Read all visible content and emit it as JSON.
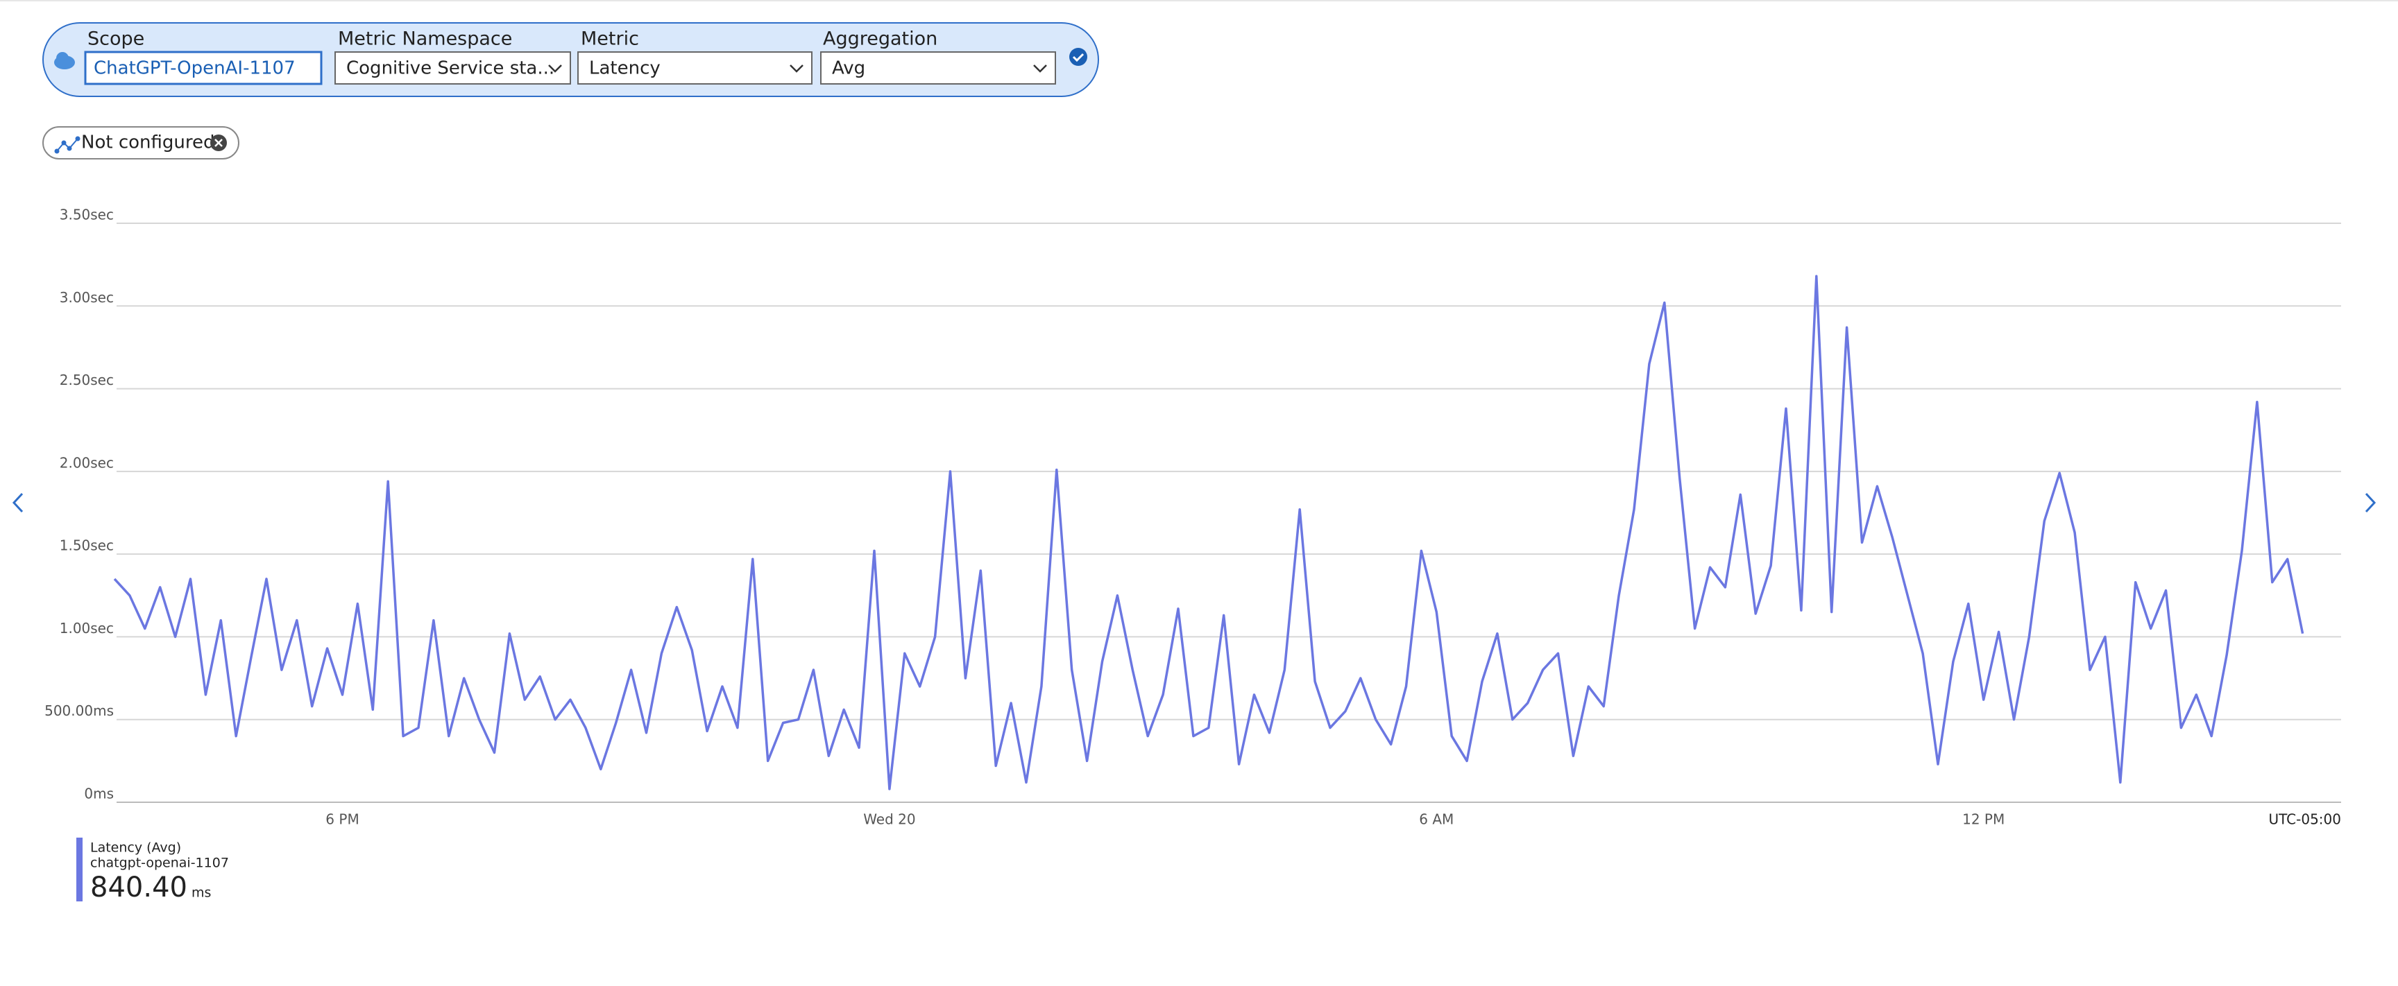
{
  "toolbar": {
    "scope_label": "Scope",
    "scope_value": "ChatGPT-OpenAI-1107",
    "namespace_label": "Metric Namespace",
    "namespace_value": "Cognitive Service sta...",
    "metric_label": "Metric",
    "metric_value": "Latency",
    "aggregation_label": "Aggregation",
    "aggregation_value": "Avg"
  },
  "filter": {
    "label": "Not configured"
  },
  "legend": {
    "name": "Latency (Avg)",
    "resource": "chatgpt-openai-1107",
    "value": "840.40",
    "unit": "ms"
  },
  "chart_data": {
    "type": "line",
    "timezone": "UTC-05:00",
    "categories": [
      null,
      null,
      null,
      null,
      null,
      null,
      null,
      null,
      null,
      null,
      null,
      null,
      null,
      null,
      null,
      "6 PM",
      null,
      null,
      null,
      null,
      null,
      null,
      null,
      null,
      null,
      null,
      null,
      null,
      null,
      null,
      null,
      null,
      null,
      null,
      null,
      null,
      null,
      null,
      null,
      null,
      null,
      null,
      null,
      null,
      null,
      null,
      null,
      null,
      null,
      null,
      null,
      "Wed 20",
      null,
      null,
      null,
      null,
      null,
      null,
      null,
      null,
      null,
      null,
      null,
      null,
      null,
      null,
      null,
      null,
      null,
      null,
      null,
      null,
      null,
      null,
      null,
      null,
      null,
      null,
      null,
      null,
      null,
      null,
      null,
      null,
      null,
      null,
      null,
      "6 AM",
      null,
      null,
      null,
      null,
      null,
      null,
      null,
      null,
      null,
      null,
      null,
      null,
      null,
      null,
      null,
      null,
      null,
      null,
      null,
      null,
      null,
      null,
      null,
      null,
      null,
      null,
      null,
      null,
      null,
      null,
      null,
      null,
      null,
      null,
      null,
      "12 PM",
      null,
      null,
      null,
      null,
      null,
      null,
      null,
      null,
      null,
      null,
      null,
      null,
      null,
      null,
      null,
      null,
      null,
      null,
      null,
      null,
      null
    ],
    "series": [
      {
        "name": "Latency (Avg)",
        "color": "#6b77e1",
        "values": [
          1350,
          1250,
          1050,
          1300,
          1000,
          1350,
          650,
          1100,
          400,
          880,
          1350,
          800,
          1100,
          580,
          930,
          650,
          1200,
          560,
          1940,
          400,
          450,
          1100,
          400,
          750,
          500,
          300,
          1020,
          620,
          760,
          500,
          620,
          450,
          200,
          480,
          800,
          420,
          900,
          1180,
          920,
          430,
          700,
          450,
          1470,
          250,
          480,
          500,
          800,
          280,
          560,
          330,
          1520,
          80,
          900,
          700,
          1000,
          2000,
          750,
          1400,
          220,
          600,
          120,
          700,
          2010,
          800,
          250,
          850,
          1250,
          800,
          400,
          650,
          1170,
          400,
          450,
          1130,
          230,
          650,
          420,
          800,
          1770,
          730,
          450,
          550,
          750,
          500,
          350,
          700,
          1520,
          1150,
          400,
          250,
          730,
          1020,
          500,
          600,
          800,
          900,
          280,
          700,
          580,
          1250,
          1770,
          2650,
          3020,
          1960,
          1050,
          1420,
          1300,
          1860,
          1140,
          1430,
          2380,
          1160,
          3180,
          1150,
          2870,
          1570,
          1910,
          1600,
          1250,
          900,
          230,
          850,
          1200,
          620,
          1030,
          500,
          1000,
          1700,
          1990,
          1630,
          800,
          1000,
          120,
          1330,
          1050,
          1280,
          450,
          650,
          400,
          890,
          1520,
          2420,
          1330,
          1470,
          1020
        ]
      }
    ],
    "ylim": [
      0,
      3500
    ],
    "yticks": [
      {
        "value": 0,
        "label": "0ms"
      },
      {
        "value": 500,
        "label": "500.00ms"
      },
      {
        "value": 1000,
        "label": "1.00sec"
      },
      {
        "value": 1500,
        "label": "1.50sec"
      },
      {
        "value": 2000,
        "label": "2.00sec"
      },
      {
        "value": 2500,
        "label": "2.50sec"
      },
      {
        "value": 3000,
        "label": "3.00sec"
      },
      {
        "value": 3500,
        "label": "3.50sec"
      }
    ],
    "grid": true
  }
}
